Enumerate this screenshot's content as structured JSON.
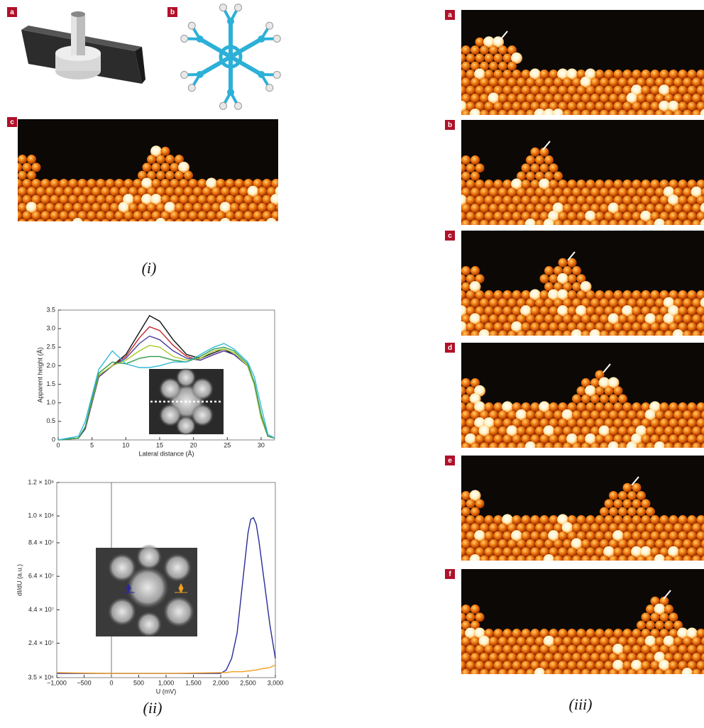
{
  "figure_i": {
    "panels": [
      "a",
      "b",
      "c"
    ],
    "caption": "(i)"
  },
  "figure_ii": {
    "caption": "(ii)"
  },
  "figure_iii": {
    "panels": [
      "a",
      "b",
      "c",
      "d",
      "e",
      "f"
    ],
    "caption": "(iii)"
  },
  "chart_data": [
    {
      "type": "line",
      "xlabel": "Lateral distance (Å)",
      "ylabel": "Apparent height (Å)",
      "x": [
        0,
        3,
        4,
        5,
        6,
        8,
        10,
        12,
        13.5,
        15,
        17,
        19,
        21,
        23,
        24.5,
        26,
        28,
        29,
        30,
        31,
        32
      ],
      "xlim": [
        0,
        32
      ],
      "xticks": [
        0,
        5,
        10,
        15,
        20,
        25,
        30
      ],
      "ylim": [
        0,
        3.5
      ],
      "yticks": [
        0,
        0.5,
        {
          "value": 1,
          "label": "1.0"
        },
        1.5,
        {
          "value": 2,
          "label": "2.0"
        },
        2.5,
        {
          "value": 3,
          "label": "3.0"
        },
        3.5
      ],
      "series": [
        {
          "color": "#111111",
          "values": [
            0,
            0.05,
            0.3,
            1.0,
            1.7,
            2.0,
            2.3,
            2.9,
            3.35,
            3.2,
            2.7,
            2.3,
            2.2,
            2.35,
            2.45,
            2.3,
            2.0,
            1.5,
            0.6,
            0.1,
            0.05
          ]
        },
        {
          "color": "#c0282a",
          "values": [
            0,
            0.05,
            0.3,
            1.0,
            1.7,
            2.0,
            2.25,
            2.75,
            3.05,
            2.95,
            2.55,
            2.25,
            2.15,
            2.3,
            2.4,
            2.3,
            2.0,
            1.5,
            0.6,
            0.1,
            0.05
          ]
        },
        {
          "color": "#4b3c9e",
          "values": [
            0,
            0.05,
            0.3,
            1.0,
            1.7,
            2.0,
            2.2,
            2.6,
            2.8,
            2.7,
            2.4,
            2.2,
            2.15,
            2.3,
            2.4,
            2.3,
            2.0,
            1.5,
            0.6,
            0.1,
            0.05
          ]
        },
        {
          "color": "#a8c82a",
          "values": [
            0,
            0.05,
            0.35,
            1.05,
            1.75,
            2.0,
            2.15,
            2.4,
            2.55,
            2.5,
            2.25,
            2.15,
            2.2,
            2.4,
            2.45,
            2.35,
            2.0,
            1.5,
            0.6,
            0.1,
            0.05
          ]
        },
        {
          "color": "#2e9a4a",
          "values": [
            0,
            0.05,
            0.35,
            1.1,
            1.8,
            2.1,
            2.05,
            2.2,
            2.25,
            2.25,
            2.15,
            2.1,
            2.25,
            2.45,
            2.5,
            2.4,
            2.05,
            1.55,
            0.7,
            0.1,
            0.05
          ]
        },
        {
          "color": "#35b8dc",
          "values": [
            0,
            0.1,
            0.5,
            1.2,
            1.9,
            2.4,
            2.05,
            1.95,
            1.95,
            2.0,
            2.1,
            2.1,
            2.3,
            2.5,
            2.6,
            2.45,
            2.1,
            1.7,
            0.9,
            0.15,
            0.05
          ]
        }
      ]
    },
    {
      "type": "line",
      "xlabel": "U (mV)",
      "ylabel": "dI/dU (a.u.)",
      "x": [
        -1000,
        0,
        1000,
        2000,
        2100,
        2200,
        2300,
        2400,
        2500,
        2550,
        2600,
        2650,
        2700,
        2800,
        2900,
        3000
      ],
      "xlim": [
        -1000,
        3000
      ],
      "xticks": [
        {
          "value": -1000,
          "label": "−1,000"
        },
        {
          "value": -500,
          "label": "−500"
        },
        0,
        500,
        {
          "value": 1000,
          "label": "1,000"
        },
        {
          "value": 1500,
          "label": "1,500"
        },
        {
          "value": 2000,
          "label": "2,000"
        },
        {
          "value": 2500,
          "label": "2,500"
        },
        {
          "value": 3000,
          "label": "3,000"
        }
      ],
      "ylim": [
        3500000,
        120000000
      ],
      "yticks": [
        {
          "value": 3500000,
          "label": "3.5 × 10⁶"
        },
        {
          "value": 24000000,
          "label": "2.4 × 10⁷"
        },
        {
          "value": 44000000,
          "label": "4.4 × 10⁷"
        },
        {
          "value": 64000000,
          "label": "6.4 × 10⁷"
        },
        {
          "value": 84000000,
          "label": "8.4 × 10⁷"
        },
        {
          "value": 100000000,
          "label": "1.0 × 10⁸"
        },
        {
          "value": 120000000,
          "label": "1.2 × 10⁸"
        }
      ],
      "series": [
        {
          "color": "#2a2a9a",
          "values": [
            6000000,
            6000000,
            6000000,
            6000000,
            8000000,
            15000000,
            30000000,
            60000000,
            90000000,
            98000000,
            99000000,
            95000000,
            85000000,
            60000000,
            35000000,
            15000000
          ]
        },
        {
          "color": "#f0a020",
          "values": [
            6500000,
            6000000,
            6000000,
            6500000,
            6500000,
            7000000,
            7000000,
            7000000,
            7500000,
            7500000,
            8000000,
            8000000,
            8500000,
            9000000,
            9500000,
            11000000
          ]
        }
      ]
    }
  ]
}
